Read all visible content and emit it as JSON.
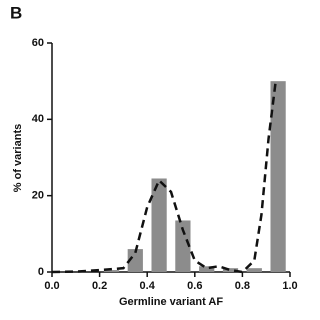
{
  "chart_data": {
    "type": "histogram",
    "panel_label": "B",
    "xlabel": "Germline variant AF",
    "ylabel": "% of variants",
    "bins": [
      0,
      0.1,
      0.2,
      0.3,
      0.4,
      0.5,
      0.6,
      0.7,
      0.8,
      0.9,
      1.0
    ],
    "values": [
      0,
      0,
      0.5,
      6,
      24.5,
      13.5,
      1.5,
      1,
      1,
      50
    ],
    "color": "#8c8c8c",
    "line": {
      "x": [
        0,
        0.1,
        0.2,
        0.3,
        0.35,
        0.4,
        0.45,
        0.5,
        0.55,
        0.6,
        0.65,
        0.7,
        0.75,
        0.8,
        0.85,
        0.88,
        0.91,
        0.94
      ],
      "y": [
        0,
        0.1,
        0.5,
        1,
        5,
        17,
        24,
        21,
        11,
        3,
        1,
        1.5,
        0.5,
        0,
        3,
        15,
        35,
        50
      ],
      "color": "#111111",
      "line_style": "dashed"
    },
    "xlim": [
      0,
      1.0
    ],
    "xticks": [
      {
        "value": 0,
        "label": "0.0"
      },
      0.2,
      0.4,
      0.6,
      0.8,
      {
        "value": 1.0,
        "label": "1.0"
      }
    ],
    "ylim": [
      0,
      60
    ],
    "yticks": [
      0,
      20,
      40,
      60
    ]
  }
}
